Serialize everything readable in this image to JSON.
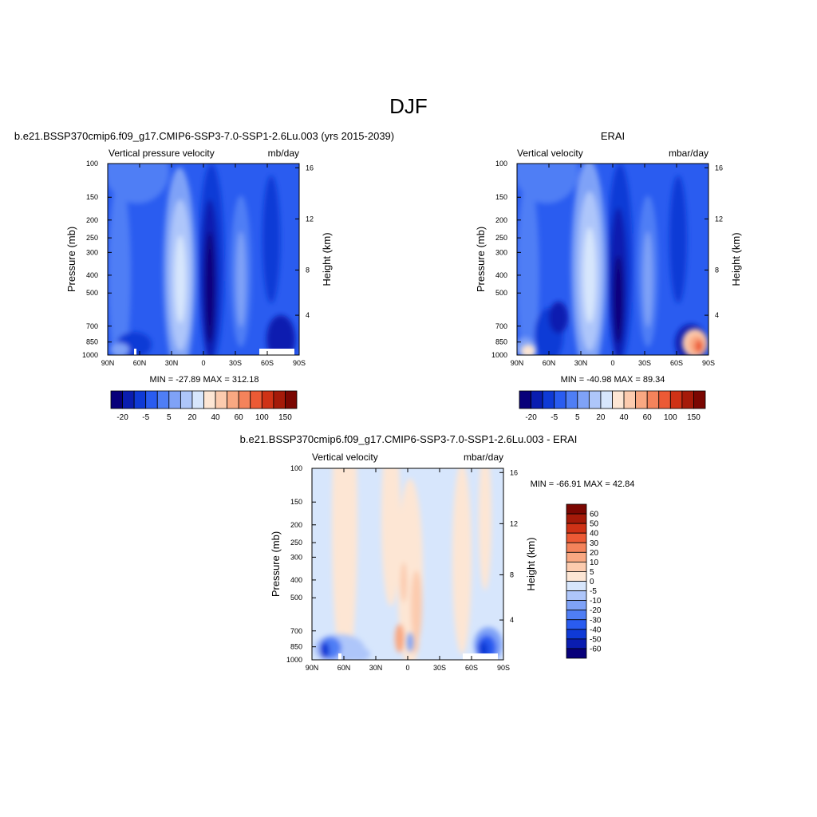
{
  "page": {
    "title": "DJF"
  },
  "chart_data": [
    {
      "type": "heatmap",
      "title": "b.e21.BSSP370cmip6.f09_g17.CMIP6-SSP3-7.0-SSP1-2.6Lu.003 (yrs 2015-2039)",
      "left_subtitle": "Vertical pressure velocity",
      "right_subtitle": "mb/day",
      "ylabel": "Pressure (mb)",
      "y2label": "Height (km)",
      "x_ticks": [
        "90N",
        "60N",
        "30N",
        "0",
        "30S",
        "60S",
        "90S"
      ],
      "y_ticks": [
        "100",
        "150",
        "200",
        "250",
        "300",
        "400",
        "500",
        "700",
        "850",
        "1000"
      ],
      "y2_ticks": [
        "16",
        "12",
        "8",
        "4"
      ],
      "stats": "MIN = -27.89  MAX = 312.18",
      "colorbar": {
        "labels": [
          "-20",
          "-5",
          "5",
          "20",
          "40",
          "60",
          "100",
          "150"
        ]
      }
    },
    {
      "type": "heatmap",
      "title": "ERAI",
      "left_subtitle": "Vertical velocity",
      "right_subtitle": "mbar/day",
      "ylabel": "Pressure (mb)",
      "y2label": "Height (km)",
      "x_ticks": [
        "90N",
        "60N",
        "30N",
        "0",
        "30S",
        "60S",
        "90S"
      ],
      "y_ticks": [
        "100",
        "150",
        "200",
        "250",
        "300",
        "400",
        "500",
        "700",
        "850",
        "1000"
      ],
      "y2_ticks": [
        "16",
        "12",
        "8",
        "4"
      ],
      "stats": "MIN = -40.98  MAX =  89.34",
      "colorbar": {
        "labels": [
          "-20",
          "-5",
          "5",
          "20",
          "40",
          "60",
          "100",
          "150"
        ]
      }
    },
    {
      "type": "heatmap",
      "title": "b.e21.BSSP370cmip6.f09_g17.CMIP6-SSP3-7.0-SSP1-2.6Lu.003 - ERAI",
      "left_subtitle": "Vertical velocity",
      "right_subtitle": "mbar/day",
      "ylabel": "Pressure (mb)",
      "y2label": "Height (km)",
      "x_ticks": [
        "90N",
        "60N",
        "30N",
        "0",
        "30S",
        "60S",
        "90S"
      ],
      "y_ticks": [
        "100",
        "150",
        "200",
        "250",
        "300",
        "400",
        "500",
        "700",
        "850",
        "1000"
      ],
      "y2_ticks": [
        "16",
        "12",
        "8",
        "4"
      ],
      "stats": "MIN = -66.91  MAX =  42.84",
      "colorbar": {
        "labels": [
          "60",
          "50",
          "40",
          "30",
          "20",
          "10",
          "5",
          "0",
          "-5",
          "-10",
          "-20",
          "-30",
          "-40",
          "-50",
          "-60"
        ]
      }
    }
  ],
  "colors": {
    "cbar_a": [
      "#08007a",
      "#0a1db0",
      "#0f3ad6",
      "#2a5cf0",
      "#4f7ef5",
      "#7fa2f7",
      "#aec6fa",
      "#d7e6fc",
      "#fde6d4",
      "#fccbae",
      "#f9a882",
      "#f4835b",
      "#ec5a35",
      "#cf3216",
      "#a51a09",
      "#7b0702"
    ],
    "cbar_diff": [
      "#7b0702",
      "#a51a09",
      "#cf3216",
      "#ec5a35",
      "#f4835b",
      "#f9a882",
      "#fccbae",
      "#fde6d4",
      "#d7e6fc",
      "#aec6fa",
      "#7fa2f7",
      "#4f7ef5",
      "#2a5cf0",
      "#0f3ad6",
      "#0a1db0",
      "#08007a"
    ]
  }
}
